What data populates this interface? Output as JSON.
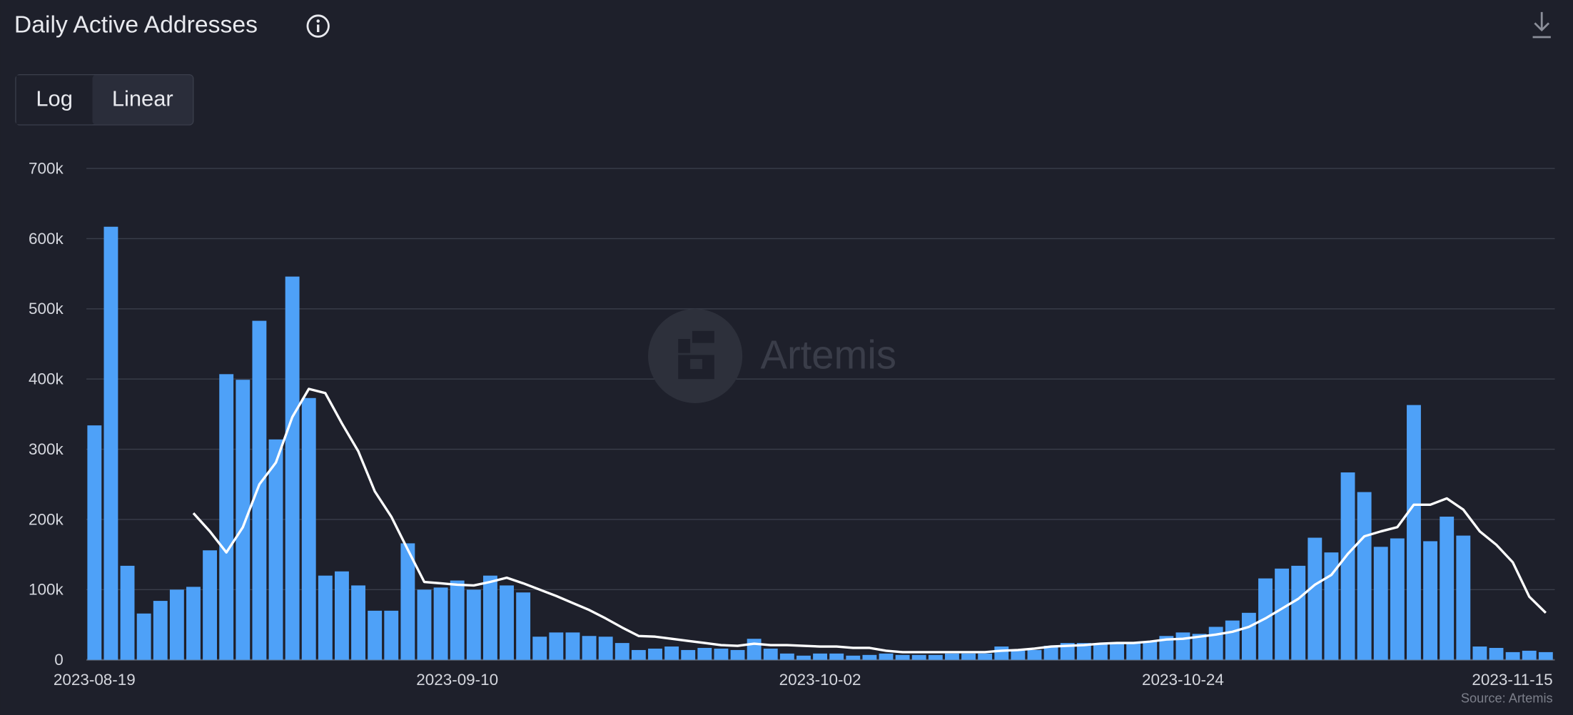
{
  "chart_data": {
    "type": "bar",
    "title": "Daily Active Addresses",
    "scale_buttons": [
      "Log",
      "Linear"
    ],
    "selected_scale": "Linear",
    "log_scale": false,
    "watermark": "Artemis",
    "source": "Source: Artemis",
    "grid": true,
    "x": [
      "2023-08-19",
      "2023-08-20",
      "2023-08-21",
      "2023-08-22",
      "2023-08-23",
      "2023-08-24",
      "2023-08-25",
      "2023-08-26",
      "2023-08-27",
      "2023-08-28",
      "2023-08-29",
      "2023-08-30",
      "2023-08-31",
      "2023-09-01",
      "2023-09-02",
      "2023-09-03",
      "2023-09-04",
      "2023-09-05",
      "2023-09-06",
      "2023-09-07",
      "2023-09-08",
      "2023-09-09",
      "2023-09-10",
      "2023-09-11",
      "2023-09-12",
      "2023-09-13",
      "2023-09-14",
      "2023-09-15",
      "2023-09-16",
      "2023-09-17",
      "2023-09-18",
      "2023-09-19",
      "2023-09-20",
      "2023-09-21",
      "2023-09-22",
      "2023-09-23",
      "2023-09-24",
      "2023-09-25",
      "2023-09-26",
      "2023-09-27",
      "2023-09-28",
      "2023-09-29",
      "2023-09-30",
      "2023-10-01",
      "2023-10-02",
      "2023-10-03",
      "2023-10-04",
      "2023-10-05",
      "2023-10-06",
      "2023-10-07",
      "2023-10-08",
      "2023-10-09",
      "2023-10-10",
      "2023-10-11",
      "2023-10-12",
      "2023-10-13",
      "2023-10-14",
      "2023-10-15",
      "2023-10-16",
      "2023-10-17",
      "2023-10-18",
      "2023-10-19",
      "2023-10-20",
      "2023-10-21",
      "2023-10-22",
      "2023-10-23",
      "2023-10-24",
      "2023-10-25",
      "2023-10-26",
      "2023-10-27",
      "2023-10-28",
      "2023-10-29",
      "2023-10-30",
      "2023-10-31",
      "2023-11-01",
      "2023-11-02",
      "2023-11-03",
      "2023-11-04",
      "2023-11-05",
      "2023-11-06",
      "2023-11-07",
      "2023-11-08",
      "2023-11-09",
      "2023-11-10",
      "2023-11-11",
      "2023-11-12",
      "2023-11-13",
      "2023-11-14",
      "2023-11-15"
    ],
    "xticks": [
      "2023-08-19",
      "2023-09-10",
      "2023-10-02",
      "2023-10-24",
      "2023-11-15"
    ],
    "ylim": [
      0,
      700000
    ],
    "yticks": [
      0,
      {
        "value": 100000,
        "label": "100k"
      },
      {
        "value": 200000,
        "label": "200k"
      },
      {
        "value": 300000,
        "label": "300k"
      },
      {
        "value": 400000,
        "label": "400k"
      },
      {
        "value": 500000,
        "label": "500k"
      },
      {
        "value": 600000,
        "label": "600k"
      },
      {
        "value": 700000,
        "label": "700k"
      }
    ],
    "series": [
      {
        "type": "bar",
        "color": "#4ea1f8",
        "values": [
          334000,
          617000,
          134000,
          66000,
          84000,
          100000,
          104000,
          156000,
          407000,
          399000,
          483000,
          314000,
          546000,
          373000,
          120000,
          126000,
          106000,
          70000,
          70000,
          166000,
          100000,
          103000,
          113000,
          100000,
          120000,
          106000,
          96000,
          33000,
          39000,
          39000,
          34000,
          33000,
          24000,
          14000,
          16000,
          19000,
          14000,
          17000,
          16000,
          14000,
          30000,
          16000,
          9000,
          6000,
          9000,
          9000,
          6000,
          7000,
          9000,
          7000,
          7000,
          7000,
          9000,
          9000,
          9000,
          19000,
          13000,
          14000,
          20000,
          24000,
          24000,
          23000,
          24000,
          24000,
          26000,
          34000,
          39000,
          37000,
          47000,
          56000,
          67000,
          116000,
          130000,
          134000,
          174000,
          153000,
          267000,
          239000,
          161000,
          173000,
          363000,
          169000,
          204000,
          177000,
          19000,
          17000,
          11000,
          13000,
          11000
        ]
      },
      {
        "type": "line",
        "color": "#ffffff",
        "values": [
          null,
          null,
          null,
          null,
          null,
          null,
          209000,
          183000,
          153000,
          189000,
          250000,
          281000,
          346000,
          386000,
          380000,
          337000,
          297000,
          240000,
          204000,
          157000,
          111000,
          109000,
          107000,
          106000,
          111000,
          117000,
          109000,
          100000,
          91000,
          81000,
          71000,
          59000,
          46000,
          34000,
          33000,
          30000,
          27000,
          24000,
          21000,
          20000,
          23000,
          21000,
          21000,
          20000,
          19000,
          19000,
          17000,
          17000,
          13000,
          11000,
          11000,
          11000,
          11000,
          11000,
          11000,
          13000,
          14000,
          16000,
          19000,
          20000,
          21000,
          23000,
          24000,
          24000,
          26000,
          29000,
          30000,
          33000,
          36000,
          40000,
          47000,
          59000,
          73000,
          87000,
          107000,
          121000,
          151000,
          176000,
          183000,
          189000,
          221000,
          221000,
          230000,
          214000,
          183000,
          164000,
          139000,
          90000,
          67000
        ]
      }
    ]
  }
}
